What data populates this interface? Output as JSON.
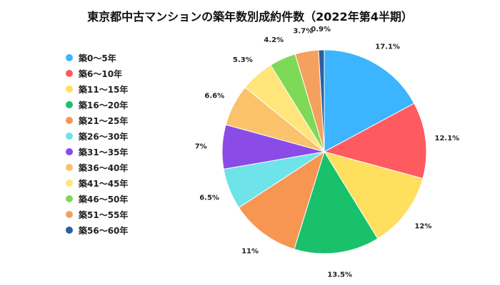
{
  "chart_data": {
    "type": "pie",
    "title": "東京都中古マンションの築年数別成約件数（2022年第4半期）",
    "categories": [
      "築0〜5年",
      "築6〜10年",
      "築11〜15年",
      "築16〜20年",
      "築21〜25年",
      "築26〜30年",
      "築31〜35年",
      "築36〜40年",
      "築41〜45年",
      "築46〜50年",
      "築51〜55年",
      "築56〜60年"
    ],
    "values": [
      17.1,
      12.1,
      12,
      13.5,
      11,
      6.5,
      7,
      6.6,
      5.3,
      4.2,
      3.7,
      0.9
    ],
    "data_labels": [
      "17.1%",
      "12.1%",
      "12%",
      "13.5%",
      "11%",
      "6.5%",
      "7%",
      "6.6%",
      "5.3%",
      "4.2%",
      "3.7%",
      "0.9%"
    ],
    "colors": [
      "#3cb4ff",
      "#ff5a5f",
      "#ffdf5e",
      "#19c16b",
      "#f79553",
      "#6ee3ea",
      "#8a4be6",
      "#f9c26b",
      "#ffe57a",
      "#7ed957",
      "#f3a15c",
      "#2d5fa0"
    ],
    "legend_position": "left"
  }
}
